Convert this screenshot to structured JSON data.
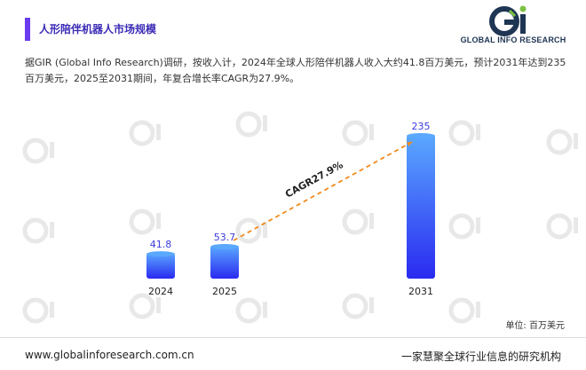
{
  "header": {
    "title": "人形陪伴机器人市场规模"
  },
  "logo": {
    "mark": "Gi",
    "name": "GLOBAL INFO RESEARCH"
  },
  "intro": "据GIR (Global Info Research)调研，按收入计，2024年全球人形陪伴机器人收入大约41.8百万美元，预计2031年达到235百万美元，2025至2031期间，年复合增长率CAGR为27.9%。",
  "chart_data": {
    "type": "bar",
    "categories": [
      "2024",
      "2025",
      "2031"
    ],
    "values": [
      41.8,
      53.7,
      235
    ],
    "annotation": "CAGR27.9%",
    "unit": "单位: 百万美元",
    "ylim": [
      0,
      235
    ],
    "grid": false,
    "colors": {
      "bar_top": "#5aa8ff",
      "bar_bottom": "#2a2af0",
      "label": "#3b3bdc",
      "trend": "#f08a1c"
    }
  },
  "footer": {
    "website": "www.globalinforesearch.com.cn",
    "slogan": "一家慧聚全球行业信息的研究机构"
  }
}
